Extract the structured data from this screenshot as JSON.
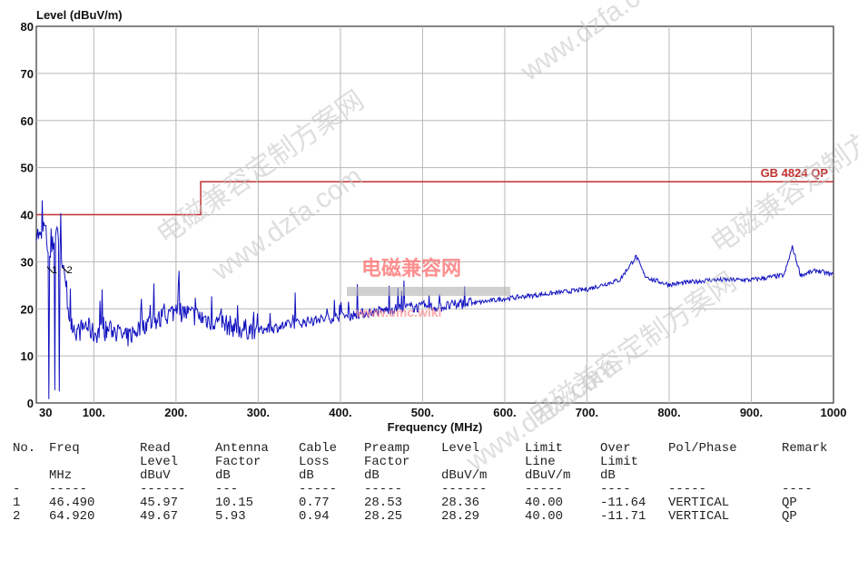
{
  "chart_data": {
    "type": "line",
    "ylabel": "Level (dBuV/m)",
    "xlabel": "Frequency (MHz)",
    "xlim": [
      30,
      1000
    ],
    "ylim": [
      0,
      80
    ],
    "x_ticks": [
      "30",
      "100.",
      "200.",
      "300.",
      "400.",
      "500.",
      "600.",
      "700.",
      "800.",
      "900.",
      "1000"
    ],
    "y_ticks": [
      "0",
      "10",
      "20",
      "30",
      "40",
      "50",
      "60",
      "70",
      "80"
    ],
    "grid": true,
    "limit_line": {
      "name": "GB 4824 QP",
      "color": "#c03030",
      "points": [
        [
          30,
          40
        ],
        [
          230,
          40
        ],
        [
          230,
          47
        ],
        [
          1000,
          47
        ]
      ]
    },
    "series_color": "#1010c0",
    "series": [
      {
        "x": [
          30,
          35,
          40,
          46.49,
          50,
          55,
          60,
          64.92,
          70,
          80,
          90,
          100,
          120,
          140,
          160,
          180,
          200,
          220,
          240,
          260,
          280,
          300,
          330,
          360,
          400,
          440,
          480,
          520,
          560,
          600,
          650,
          700,
          740,
          760,
          770,
          780,
          800,
          850,
          900,
          940,
          950,
          960,
          980,
          1000
        ],
        "y": [
          36,
          34,
          37,
          30,
          33,
          36,
          32,
          24,
          18,
          14,
          16,
          14,
          15,
          13,
          16,
          17,
          19,
          18,
          17,
          16,
          15,
          15,
          16,
          17,
          18,
          19,
          20,
          20,
          21,
          22,
          23,
          24,
          26,
          31,
          27,
          26,
          25,
          26,
          26,
          27,
          33,
          27,
          28,
          27
        ]
      }
    ],
    "markers": [
      {
        "label": "1",
        "x": 46.49,
        "y": 28.36
      },
      {
        "label": "2",
        "x": 64.92,
        "y": 28.29
      }
    ]
  },
  "table": {
    "headers": [
      [
        "No.",
        "Freq",
        "Read",
        "Antenna",
        "Cable",
        "Preamp",
        "Level",
        "Limit",
        "Over",
        "Pol/Phase",
        "Remark"
      ],
      [
        "",
        "",
        "Level",
        "Factor",
        "Loss",
        "Factor",
        "",
        "Line",
        "Limit",
        "",
        ""
      ],
      [
        "",
        "MHz",
        "dBuV",
        "dB",
        "dB",
        "dB",
        "dBuV/m",
        "dBuV/m",
        "dB",
        "",
        ""
      ],
      [
        "-",
        "-----",
        "------",
        "---",
        "-----",
        "-----",
        "------",
        "-----",
        "----",
        "-----",
        "----"
      ]
    ],
    "rows": [
      [
        "1",
        "46.490",
        "45.97",
        "10.15",
        "0.77",
        "28.53",
        "28.36",
        "40.00",
        "-11.64",
        "VERTICAL",
        "QP"
      ],
      [
        "2",
        "64.920",
        "49.67",
        "5.93",
        "0.94",
        "28.25",
        "28.29",
        "40.00",
        "-11.71",
        "VERTICAL",
        "QP"
      ]
    ]
  },
  "watermarks": {
    "cn1": "电磁兼容定制方案网",
    "url1": "www.dzfa.com",
    "cn2": "电磁兼容网",
    "url2": "www.emc.wiki"
  }
}
